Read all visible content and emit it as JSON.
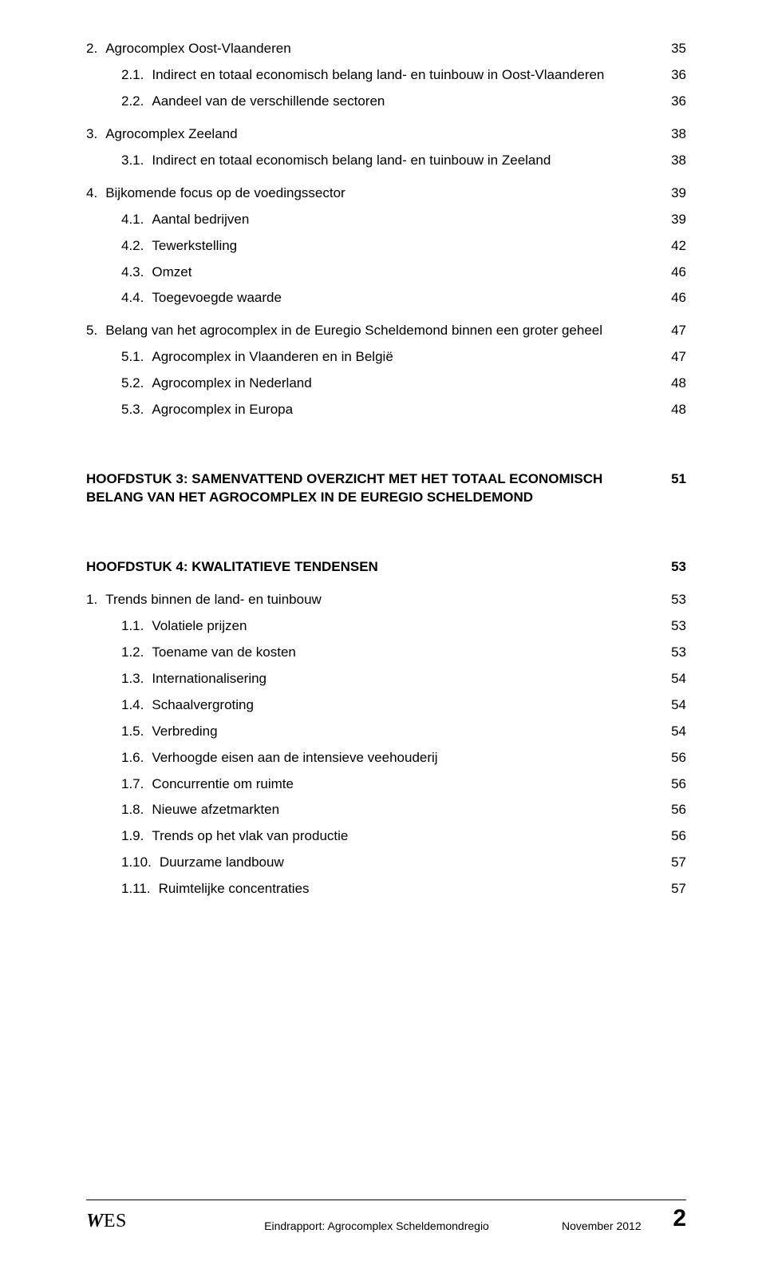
{
  "toc": [
    {
      "level": 1,
      "num": "2.",
      "label": "Agrocomplex Oost-Vlaanderen",
      "page": "35"
    },
    {
      "level": 2,
      "num": "2.1.",
      "label": "Indirect en totaal economisch belang land- en tuinbouw in Oost-Vlaanderen",
      "page": "36"
    },
    {
      "level": 2,
      "num": "2.2.",
      "label": "Aandeel van de verschillende sectoren",
      "page": "36"
    },
    {
      "level": 1,
      "num": "3.",
      "label": "Agrocomplex Zeeland",
      "page": "38"
    },
    {
      "level": 2,
      "num": "3.1.",
      "label": "Indirect en totaal economisch belang land- en tuinbouw in Zeeland",
      "page": "38"
    },
    {
      "level": 1,
      "num": "4.",
      "label": "Bijkomende focus op de voedingssector",
      "page": "39"
    },
    {
      "level": 2,
      "num": "4.1.",
      "label": "Aantal bedrijven",
      "page": "39"
    },
    {
      "level": 2,
      "num": "4.2.",
      "label": "Tewerkstelling",
      "page": "42"
    },
    {
      "level": 2,
      "num": "4.3.",
      "label": "Omzet",
      "page": "46"
    },
    {
      "level": 2,
      "num": "4.4.",
      "label": "Toegevoegde waarde",
      "page": "46"
    },
    {
      "level": 1,
      "num": "5.",
      "label": "Belang van het agrocomplex in de Euregio Scheldemond binnen een groter geheel",
      "page": "47"
    },
    {
      "level": 2,
      "num": "5.1.",
      "label": "Agrocomplex in Vlaanderen en in België",
      "page": "47"
    },
    {
      "level": 2,
      "num": "5.2.",
      "label": "Agrocomplex in Nederland",
      "page": "48"
    },
    {
      "level": 2,
      "num": "5.3.",
      "label": "Agrocomplex in Europa",
      "page": "48"
    }
  ],
  "chapters": [
    {
      "label": "HOOFDSTUK 3: SAMENVATTEND OVERZICHT MET HET TOTAAL ECONOMISCH BELANG VAN HET AGROCOMPLEX IN DE EUREGIO SCHELDEMOND",
      "page": "51"
    },
    {
      "label": "HOOFDSTUK 4: KWALITATIEVE TENDENSEN",
      "page": "53"
    }
  ],
  "toc2": [
    {
      "level": 1,
      "num": "1.",
      "label": "Trends binnen de land- en tuinbouw",
      "page": "53"
    },
    {
      "level": 2,
      "num": "1.1.",
      "label": "Volatiele prijzen",
      "page": "53"
    },
    {
      "level": 2,
      "num": "1.2.",
      "label": "Toename van de kosten",
      "page": "53"
    },
    {
      "level": 2,
      "num": "1.3.",
      "label": "Internationalisering",
      "page": "54"
    },
    {
      "level": 2,
      "num": "1.4.",
      "label": "Schaalvergroting",
      "page": "54"
    },
    {
      "level": 2,
      "num": "1.5.",
      "label": "Verbreding",
      "page": "54"
    },
    {
      "level": 2,
      "num": "1.6.",
      "label": "Verhoogde eisen aan de intensieve veehouderij",
      "page": "56"
    },
    {
      "level": 2,
      "num": "1.7.",
      "label": "Concurrentie om ruimte",
      "page": "56"
    },
    {
      "level": 2,
      "num": "1.8.",
      "label": "Nieuwe afzetmarkten",
      "page": "56"
    },
    {
      "level": 2,
      "num": "1.9.",
      "label": "Trends op het vlak van productie",
      "page": "56"
    },
    {
      "level": 2,
      "num": "1.10.",
      "label": "Duurzame landbouw",
      "page": "57"
    },
    {
      "level": 2,
      "num": "1.11.",
      "label": "Ruimtelijke concentraties",
      "page": "57"
    }
  ],
  "footer": {
    "logo": "WES",
    "center": "Eindrapport: Agrocomplex Scheldemondregio",
    "right": "November 2012",
    "page": "2"
  }
}
